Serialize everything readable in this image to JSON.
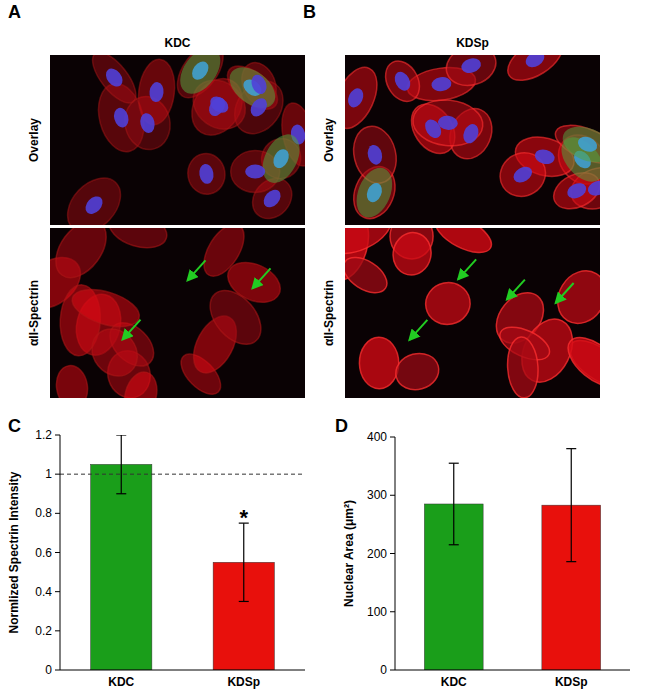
{
  "figure": {
    "panels": [
      {
        "label": "A",
        "title": "KDC",
        "rows": [
          "Overlay",
          "αII-Spectrin"
        ]
      },
      {
        "label": "B",
        "title": "KDSp",
        "rows": [
          "Overlay",
          "αII-Spectrin"
        ]
      }
    ]
  },
  "chart_data": [
    {
      "type": "bar",
      "panel": "C",
      "y_label": "Normlized Spectrin Intensity",
      "categories": [
        "KDC",
        "KDSp"
      ],
      "values": [
        1.05,
        0.55
      ],
      "errors": [
        0.15,
        0.2
      ],
      "colors": [
        "#1a9e1a",
        "#e8100c"
      ],
      "reference_line": 1,
      "annotations": [
        {
          "text": "*",
          "category": "KDSp"
        }
      ],
      "ylim": [
        0,
        1.2
      ],
      "yticks": [
        0,
        0.2,
        0.4,
        0.6,
        0.8,
        1,
        1.2
      ],
      "grid": false
    },
    {
      "type": "bar",
      "panel": "D",
      "y_label": "Nuclear Area (μm²)",
      "categories": [
        "KDC",
        "KDSp"
      ],
      "values": [
        285,
        283
      ],
      "errors": [
        70,
        97
      ],
      "colors": [
        "#1a9e1a",
        "#e8100c"
      ],
      "ylim": [
        0,
        400
      ],
      "yticks": [
        0,
        100,
        200,
        300,
        400
      ],
      "grid": false
    }
  ]
}
